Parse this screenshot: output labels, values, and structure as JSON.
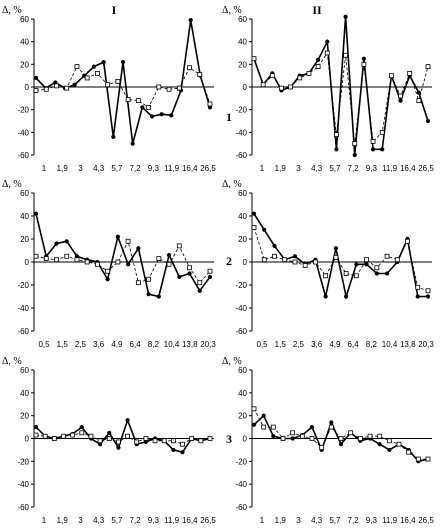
{
  "column_headers": [
    "I",
    "II"
  ],
  "row_labels": [
    "1",
    "2",
    "3"
  ],
  "y_axis_label": "Δ, %",
  "chart_data": [
    {
      "type": "line",
      "panel": "I-1",
      "x_tick_labels": [
        "1",
        "1,9",
        "3",
        "4,3",
        "5,7",
        "7,2",
        "9,3",
        "11,9",
        "16,4",
        "26,5"
      ],
      "yticks": [
        60,
        40,
        20,
        0,
        -20,
        -40,
        -60
      ],
      "ylim": [
        -60,
        60
      ],
      "series": [
        {
          "style": "solid-filled",
          "values": [
            8,
            -1,
            4,
            -1,
            2,
            10,
            18,
            22,
            -44,
            22,
            -50,
            -18,
            -26,
            -24,
            -25,
            -3,
            59,
            10,
            -18
          ]
        },
        {
          "style": "dashed-open",
          "values": [
            -3,
            -2,
            1,
            -1,
            18,
            8,
            12,
            2,
            5,
            -11,
            -12,
            -18,
            0,
            -2,
            -1,
            17,
            11,
            -15
          ]
        }
      ]
    },
    {
      "type": "line",
      "panel": "II-1",
      "x_tick_labels": [
        "1",
        "1,9",
        "3",
        "4,3",
        "5,7",
        "7,2",
        "9,3",
        "11,9",
        "16,4",
        "26,5"
      ],
      "yticks": [
        60,
        40,
        20,
        0,
        -20,
        -40,
        -60
      ],
      "ylim": [
        -60,
        60
      ],
      "series": [
        {
          "style": "solid-filled",
          "values": [
            25,
            2,
            12,
            -3,
            0,
            10,
            12,
            24,
            40,
            -55,
            62,
            -60,
            25,
            -55,
            -55,
            10,
            -12,
            10,
            -5,
            -30
          ]
        },
        {
          "style": "dashed-open",
          "values": [
            25,
            2,
            10,
            -1,
            0,
            8,
            12,
            18,
            30,
            -42,
            28,
            -50,
            20,
            -48,
            -40,
            10,
            -8,
            12,
            -12,
            18
          ]
        }
      ]
    },
    {
      "type": "line",
      "panel": "I-2",
      "x_tick_labels": [
        "0,5",
        "1,5",
        "2,5",
        "3,6",
        "4,9",
        "6,4",
        "8,2",
        "10,4",
        "13,8",
        "20,3"
      ],
      "yticks": [
        60,
        40,
        20,
        0,
        -20,
        -40,
        -60
      ],
      "ylim": [
        -60,
        60
      ],
      "series": [
        {
          "style": "solid-filled",
          "values": [
            42,
            5,
            16,
            18,
            5,
            2,
            0,
            -15,
            22,
            -2,
            12,
            -28,
            -30,
            6,
            -13,
            -10,
            -25,
            -13
          ]
        },
        {
          "style": "dashed-open",
          "values": [
            5,
            3,
            2,
            5,
            2,
            0,
            -2,
            -8,
            0,
            18,
            -18,
            -15,
            3,
            -2,
            14,
            -5,
            -18,
            -8
          ]
        }
      ]
    },
    {
      "type": "line",
      "panel": "II-2",
      "x_tick_labels": [
        "0,5",
        "1,5",
        "2,5",
        "3,6",
        "4,9",
        "6,4",
        "8,2",
        "10,4",
        "13,8",
        "20,3"
      ],
      "yticks": [
        60,
        40,
        20,
        0,
        -20,
        -40,
        -60
      ],
      "ylim": [
        -60,
        60
      ],
      "series": [
        {
          "style": "solid-filled",
          "values": [
            42,
            28,
            14,
            2,
            5,
            -2,
            2,
            -30,
            12,
            -30,
            -2,
            -2,
            -10,
            -10,
            0,
            20,
            -30,
            -30
          ]
        },
        {
          "style": "dashed-open",
          "values": [
            30,
            2,
            5,
            2,
            0,
            -3,
            0,
            -12,
            4,
            -10,
            -12,
            2,
            -5,
            5,
            2,
            18,
            -22,
            -25
          ]
        }
      ]
    },
    {
      "type": "line",
      "panel": "I-3",
      "x_tick_labels": [
        "1",
        "1,9",
        "3",
        "4,3",
        "5,7",
        "7,2",
        "9,3",
        "11,9",
        "16,4",
        "26,5"
      ],
      "yticks": [
        60,
        40,
        20,
        0,
        -20,
        -40,
        -60
      ],
      "ylim": [
        -60,
        60
      ],
      "series": [
        {
          "style": "solid-filled",
          "values": [
            10,
            2,
            0,
            2,
            4,
            10,
            0,
            -5,
            5,
            -8,
            16,
            -5,
            -3,
            0,
            -2,
            -10,
            -12,
            0,
            -2,
            0
          ]
        },
        {
          "style": "dashed-open",
          "values": [
            3,
            2,
            0,
            2,
            3,
            5,
            2,
            -2,
            0,
            -3,
            2,
            -3,
            0,
            -2,
            -2,
            -2,
            -5,
            0,
            -2,
            0
          ]
        }
      ]
    },
    {
      "type": "line",
      "panel": "II-3",
      "x_tick_labels": [
        "1",
        "1,9",
        "3",
        "4,3",
        "5,7",
        "7,2",
        "9,3",
        "11,9",
        "16,4",
        "26,5"
      ],
      "yticks": [
        60,
        40,
        20,
        0,
        -20,
        -40,
        -60
      ],
      "ylim": [
        -60,
        60
      ],
      "series": [
        {
          "style": "solid-filled",
          "values": [
            12,
            20,
            2,
            0,
            0,
            3,
            10,
            -10,
            14,
            -5,
            5,
            -2,
            0,
            -5,
            -10,
            -5,
            -10,
            -20,
            -18
          ]
        },
        {
          "style": "dashed-open",
          "values": [
            26,
            10,
            10,
            0,
            5,
            2,
            0,
            -8,
            10,
            0,
            5,
            0,
            2,
            2,
            -2,
            -5,
            -12,
            -18,
            -18
          ]
        }
      ]
    }
  ]
}
